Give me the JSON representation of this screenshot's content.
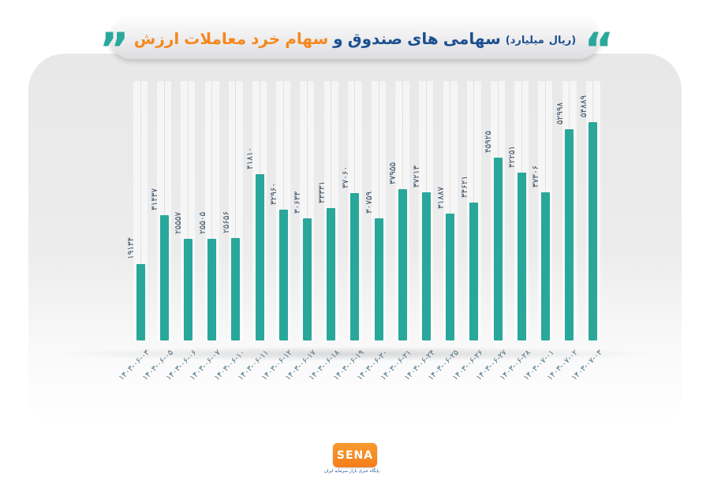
{
  "title": {
    "quote_left": "”",
    "quote_right": "“",
    "words": [
      {
        "text": "ارزش",
        "style": "orange"
      },
      {
        "text": "معاملات",
        "style": "orange"
      },
      {
        "text": "خرد",
        "style": "orange"
      },
      {
        "text": "سهام",
        "style": "orange"
      },
      {
        "text": "و",
        "style": "blue"
      },
      {
        "text": "صندوق",
        "style": "blue"
      },
      {
        "text": "های",
        "style": "blue"
      },
      {
        "text": "سهامی",
        "style": "blue"
      },
      {
        "text": "(میلیارد",
        "style": "unit"
      },
      {
        "text": "ریال)",
        "style": "unit"
      }
    ]
  },
  "chart_data": {
    "type": "bar",
    "title": "ارزش معاملات خرد سهام و صندوق های سهامی",
    "ylabel": "میلیارد ریال",
    "xlabel": "",
    "ylim": [
      0,
      56000
    ],
    "grid": "vertical-stripes",
    "legend": "none",
    "bar_color": "#2aa79b",
    "value_label_digits": "persian",
    "categories": [
      "۱۴۰۳-۰۶-۰۳",
      "۱۴۰۳-۰۶-۰۵",
      "۱۴۰۳-۰۶-۰۶",
      "۱۴۰۳-۰۶-۰۷",
      "۱۴۰۳-۰۶-۱۰",
      "۱۴۰۳-۰۶-۱۱",
      "۱۴۰۳-۰۶-۱۲",
      "۱۴۰۳-۰۶-۱۷",
      "۱۴۰۳-۰۶-۱۸",
      "۱۴۰۳-۰۶-۱۹",
      "۱۴۰۳-۰۶-۲۰",
      "۱۴۰۳-۰۶-۲۱",
      "۱۴۰۳-۰۶-۲۴",
      "۱۴۰۳-۰۶-۲۵",
      "۱۴۰۳-۰۶-۲۶",
      "۱۴۰۳-۰۶-۲۷",
      "۱۴۰۳-۰۶-۲۸",
      "۱۴۰۳-۰۷-۰۱",
      "۱۴۰۳-۰۷-۰۲",
      "۱۴۰۳-۰۷-۰۳"
    ],
    "values": [
      19134,
      31437,
      25557,
      25505,
      25656,
      41810,
      32960,
      30633,
      33331,
      37060,
      30759,
      37955,
      37213,
      31887,
      34621,
      45925,
      42251,
      37306,
      52998,
      54889
    ]
  },
  "footer": {
    "logo_text": "SENA",
    "logo_tagline": "پایگاه خبری بازار سرمایه ایران"
  },
  "colors": {
    "bar": "#2aa79b",
    "accent_orange": "#f6881f",
    "accent_blue": "#1d4f91",
    "quote": "#2aa89c",
    "value_label": "#3b5166",
    "date_label": "#4a7185"
  }
}
